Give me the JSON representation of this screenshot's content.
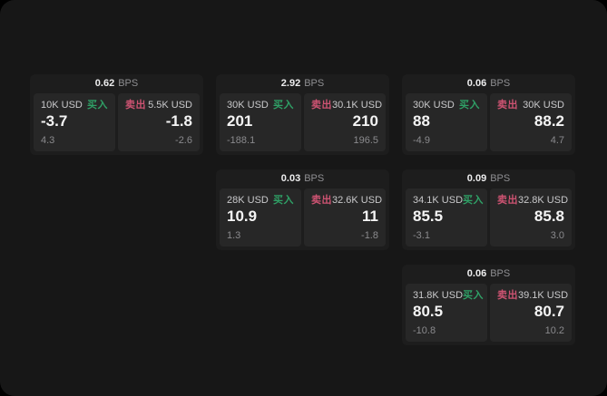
{
  "labels": {
    "bps_unit": "BPS",
    "buy": "买入",
    "sell": "卖出"
  },
  "colors": {
    "bg": "#171717",
    "card": "#1d1d1d",
    "panel": "#272727",
    "buy": "#2fa066",
    "sell": "#cd5372"
  },
  "cards": [
    {
      "bps": "0.62",
      "buy": {
        "amount": "10K USD",
        "price": "-3.7",
        "change": "4.3"
      },
      "sell": {
        "amount": "5.5K USD",
        "price": "-1.8",
        "change": "-2.6"
      }
    },
    {
      "bps": "2.92",
      "buy": {
        "amount": "30K USD",
        "price": "201",
        "change": "-188.1"
      },
      "sell": {
        "amount": "30.1K USD",
        "price": "210",
        "change": "196.5"
      }
    },
    {
      "bps": "0.06",
      "buy": {
        "amount": "30K USD",
        "price": "88",
        "change": "-4.9"
      },
      "sell": {
        "amount": "30K USD",
        "price": "88.2",
        "change": "4.7"
      }
    },
    {
      "bps": "0.03",
      "buy": {
        "amount": "28K USD",
        "price": "10.9",
        "change": "1.3"
      },
      "sell": {
        "amount": "32.6K USD",
        "price": "11",
        "change": "-1.8"
      }
    },
    {
      "bps": "0.09",
      "buy": {
        "amount": "34.1K USD",
        "price": "85.5",
        "change": "-3.1"
      },
      "sell": {
        "amount": "32.8K USD",
        "price": "85.8",
        "change": "3.0"
      }
    },
    {
      "bps": "0.06",
      "buy": {
        "amount": "31.8K USD",
        "price": "80.5",
        "change": "-10.8"
      },
      "sell": {
        "amount": "39.1K USD",
        "price": "80.7",
        "change": "10.2"
      }
    }
  ]
}
